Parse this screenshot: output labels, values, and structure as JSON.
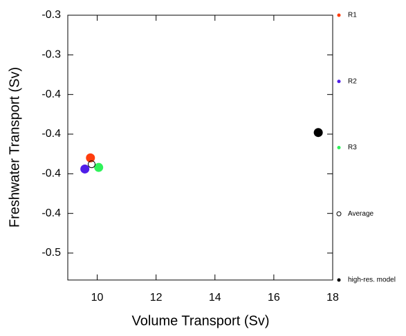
{
  "chart_data": {
    "type": "scatter",
    "x_label": "Volume Transport (Sv)",
    "y_label": "Freshwater Transport (Sv)",
    "xlim": [
      9,
      18
    ],
    "ylim": [
      -0.467,
      -0.3
    ],
    "xticks": [
      10,
      12,
      14,
      16,
      18
    ],
    "yticks": [
      {
        "value": -0.3,
        "label": "-0.3"
      },
      {
        "value": -0.325,
        "label": "-0.3"
      },
      {
        "value": -0.35,
        "label": "-0.4"
      },
      {
        "value": -0.375,
        "label": "-0.4"
      },
      {
        "value": -0.4,
        "label": "-0.4"
      },
      {
        "value": -0.425,
        "label": "-0.4"
      },
      {
        "value": -0.45,
        "label": "-0.5"
      }
    ],
    "series": [
      {
        "name": "R1",
        "color": "#ff3d0d",
        "marker": "filled",
        "x": [
          9.77
        ],
        "values": [
          -0.39
        ]
      },
      {
        "name": "R2",
        "color": "#4f1ee8",
        "marker": "filled",
        "x": [
          9.58
        ],
        "values": [
          -0.397
        ]
      },
      {
        "name": "R3",
        "color": "#2ff25a",
        "marker": "filled",
        "x": [
          10.05
        ],
        "values": [
          -0.396
        ]
      },
      {
        "name": "Average",
        "color": "#000000",
        "marker": "open",
        "x": [
          9.81
        ],
        "values": [
          -0.394
        ]
      },
      {
        "name": "high-res. model",
        "color": "#000000",
        "marker": "filled",
        "x": [
          17.51
        ],
        "values": [
          -0.374
        ]
      }
    ]
  }
}
